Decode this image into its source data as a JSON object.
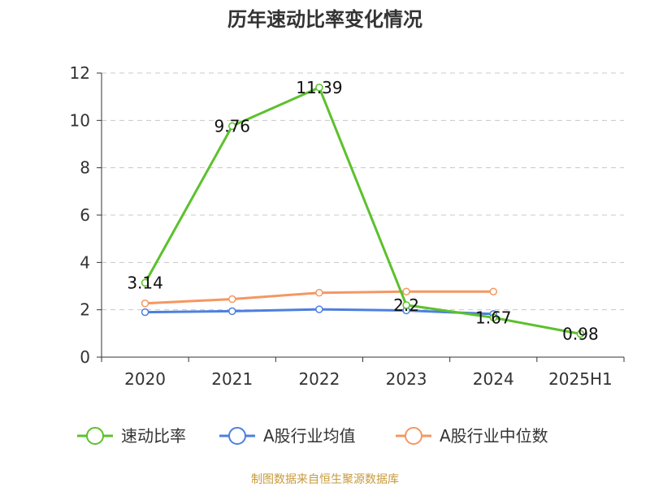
{
  "chart_data": {
    "type": "line",
    "title": "历年速动比率变化情况",
    "categories": [
      "2020",
      "2021",
      "2022",
      "2023",
      "2024",
      "2025H1"
    ],
    "ylim": [
      0,
      12
    ],
    "yticks": [
      0,
      2,
      4,
      6,
      8,
      10,
      12
    ],
    "grid": true,
    "legend_position": "bottom",
    "series": [
      {
        "name": "速动比率",
        "color": "#5cc12c",
        "values": [
          3.14,
          9.76,
          11.39,
          2.2,
          1.67,
          0.98
        ],
        "labels": [
          "3.14",
          "9.76",
          "11.39",
          "2.2",
          "1.67",
          "0.98"
        ]
      },
      {
        "name": "A股行业均值",
        "color": "#4d7fe0",
        "values": [
          1.9,
          1.94,
          2.02,
          1.97,
          1.82,
          null
        ]
      },
      {
        "name": "A股行业中位数",
        "color": "#f59762",
        "values": [
          2.27,
          2.45,
          2.72,
          2.77,
          2.77,
          null
        ]
      }
    ]
  },
  "footer": {
    "source": "制图数据来自恒生聚源数据库"
  }
}
